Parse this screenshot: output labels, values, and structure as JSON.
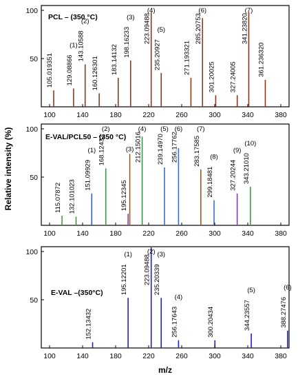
{
  "chart_data": [
    {
      "type": "bar",
      "title": "PCL – (350 °C)",
      "xlabel": "",
      "ylabel": "",
      "xlim": [
        90,
        390
      ],
      "ylim": [
        0,
        105
      ],
      "xticks": [
        100,
        140,
        180,
        220,
        260,
        300,
        340,
        380
      ],
      "yticks": [
        50,
        100
      ],
      "grid": false,
      "color": "#8a3a16",
      "peaks": [
        {
          "x": 105.019351,
          "y": 17,
          "label": "105.019351"
        },
        {
          "x": 129.08866,
          "y": 19,
          "label": "129.08866",
          "index": "(1)"
        },
        {
          "x": 143.10588,
          "y": 44,
          "label": "143.10588",
          "index": "(2)"
        },
        {
          "x": 160.126301,
          "y": 14,
          "label": "160.126301"
        },
        {
          "x": 183.14132,
          "y": 30,
          "label": "183.14132"
        },
        {
          "x": 198.16233,
          "y": 48,
          "label": "198.16233",
          "index": "(3)"
        },
        {
          "x": 223.09488,
          "y": 98,
          "label": "223.09488",
          "index": "(4)"
        },
        {
          "x": 235.20927,
          "y": 35,
          "label": "235.20927",
          "index": "(5)"
        },
        {
          "x": 271.193321,
          "y": 30,
          "label": "271.193321"
        },
        {
          "x": 285.20753,
          "y": 92,
          "label": "285.20753",
          "index": "(6)"
        },
        {
          "x": 301.20025,
          "y": 12,
          "label": "301.20025"
        },
        {
          "x": 327.24005,
          "y": 12,
          "label": "327.24005"
        },
        {
          "x": 341.2382,
          "y": 98,
          "label": "341.23820",
          "index": "(7)"
        },
        {
          "x": 361.23632,
          "y": 28,
          "label": "361.236320"
        }
      ]
    },
    {
      "type": "bar",
      "title": "E-VAL/PCL50 – (350 °C)",
      "xlabel": "",
      "ylabel": "Relative intensity (%)",
      "xlim": [
        90,
        390
      ],
      "ylim": [
        0,
        105
      ],
      "xticks": [
        100,
        140,
        180,
        220,
        260,
        300,
        340,
        380
      ],
      "yticks": [
        50,
        100
      ],
      "grid": false,
      "peaks": [
        {
          "x": 115.07872,
          "y": 10,
          "label": "115.07872",
          "color": "#3f9a3f"
        },
        {
          "x": 132.101023,
          "y": 9,
          "label": "132.101023",
          "color": "#3f9a3f"
        },
        {
          "x": 151.09929,
          "y": 33,
          "label": "151.09929",
          "index": "(1)",
          "color": "#2f5fb8"
        },
        {
          "x": 168.12432,
          "y": 59,
          "label": "168.12432",
          "index": "(2)",
          "color": "#3f9a3f"
        },
        {
          "x": 195.12345,
          "y": 12,
          "label": "195.12345",
          "color": "#7a3fb0"
        },
        {
          "x": 197.15,
          "y": 74,
          "label": "",
          "index": "(3)",
          "color": "#a8531c"
        },
        {
          "x": 212.15016,
          "y": 92,
          "label": "212.15016",
          "index": "(4)",
          "color": "#2f9a44"
        },
        {
          "x": 239.1497,
          "y": 60,
          "label": "239.14970",
          "index": "(5)",
          "color": "#2f6fd8"
        },
        {
          "x": 256.17762,
          "y": 80,
          "label": "256.17762",
          "index": "(6)",
          "color": "#2f6fd8"
        },
        {
          "x": 283.17585,
          "y": 58,
          "label": "283.17585",
          "index": "(7)",
          "color": "#a8531c"
        },
        {
          "x": 299.18481,
          "y": 26,
          "label": "299.18481",
          "index": "(8)",
          "color": "#2f6fd8"
        },
        {
          "x": 327.20244,
          "y": 33,
          "label": "327.20244",
          "index": "(9)",
          "color": "#7a3fb0"
        },
        {
          "x": 343.2101,
          "y": 40,
          "label": "343.21010",
          "index": "(10)",
          "color": "#3f9a3f"
        }
      ]
    },
    {
      "type": "bar",
      "title": "E-VAL –(350°C)",
      "xlabel": "m/z",
      "ylabel": "",
      "xlim": [
        90,
        390
      ],
      "ylim": [
        0,
        105
      ],
      "xticks": [
        100,
        140,
        180,
        220,
        260,
        300,
        340,
        380
      ],
      "yticks": [
        50,
        100
      ],
      "grid": false,
      "color": "#1f1fc4",
      "peaks": [
        {
          "x": 152.13432,
          "y": 6,
          "label": "152.13432"
        },
        {
          "x": 195.12201,
          "y": 52,
          "label": "195.12201",
          "index": "(1)"
        },
        {
          "x": 223.09488,
          "y": 105,
          "label": "223.09488",
          "index": "(2)"
        },
        {
          "x": 235.20339,
          "y": 52,
          "label": "235.20339",
          "index": "(3)"
        },
        {
          "x": 256.17643,
          "y": 8,
          "label": "256.17643",
          "index": "(4)"
        },
        {
          "x": 300.20434,
          "y": 8,
          "label": "300.20434"
        },
        {
          "x": 344.23557,
          "y": 15,
          "label": "344.23557",
          "index": "(5)"
        },
        {
          "x": 388.27476,
          "y": 18,
          "label": "388.27476",
          "index": "(6)"
        }
      ]
    }
  ]
}
